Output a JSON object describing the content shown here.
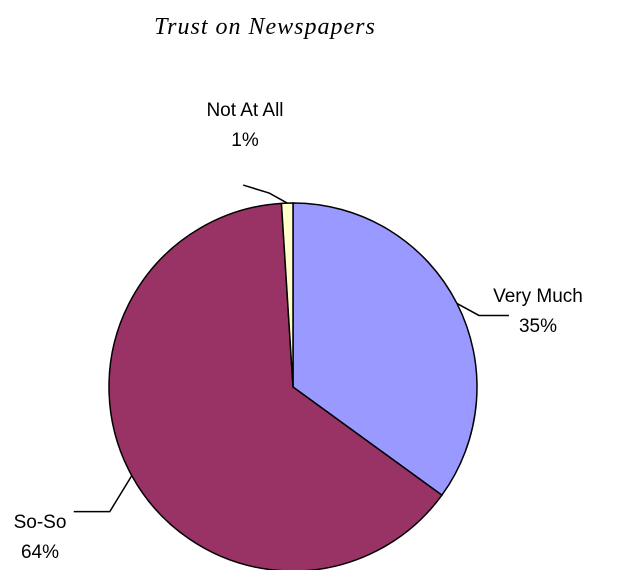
{
  "chart_data": {
    "type": "pie",
    "title": "Trust on Newspapers",
    "slices": [
      {
        "name": "Very Much",
        "value": 35,
        "label": "35%",
        "color": "#9999FF"
      },
      {
        "name": "So-So",
        "value": 64,
        "label": "64%",
        "color": "#993366"
      },
      {
        "name": "Not At All",
        "value": 1,
        "label": "1%",
        "color": "#FFFFCC"
      }
    ],
    "start_angle": "12 o'clock",
    "direction": "clockwise",
    "legend": "none"
  }
}
